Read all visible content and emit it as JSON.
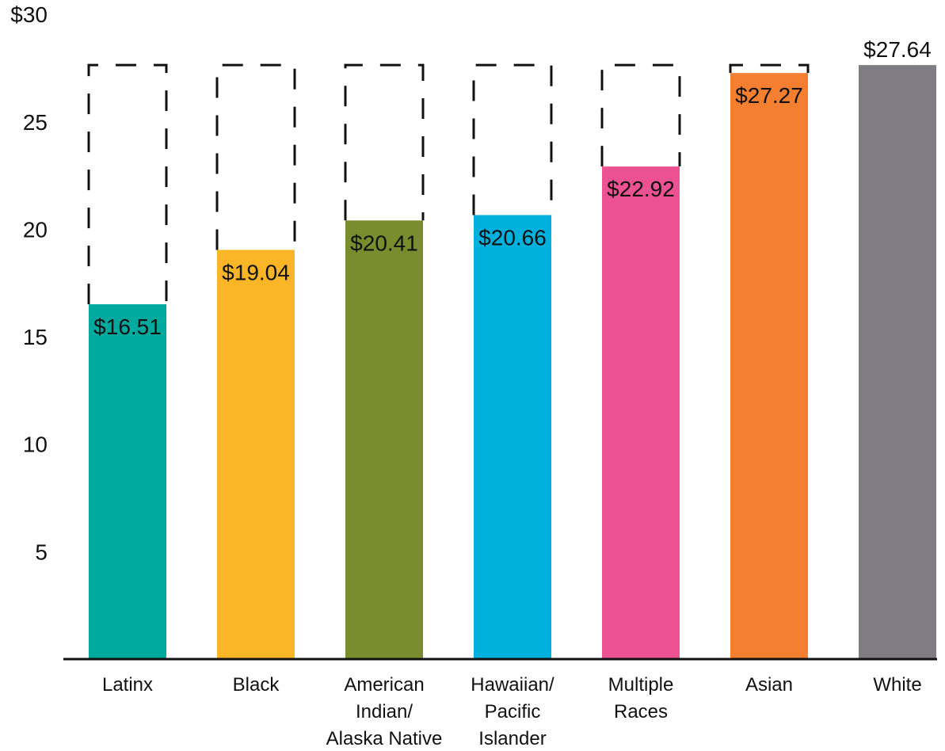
{
  "chart_data": {
    "type": "bar",
    "categories": [
      [
        "Latinx"
      ],
      [
        "Black"
      ],
      [
        "American",
        "Indian/",
        "Alaska Native"
      ],
      [
        "Hawaiian/",
        "Pacific",
        "Islander"
      ],
      [
        "Multiple",
        "Races"
      ],
      [
        "Asian"
      ],
      [
        "White"
      ]
    ],
    "values": [
      16.51,
      19.04,
      20.41,
      20.66,
      22.92,
      27.27,
      27.64
    ],
    "data_labels": [
      "$16.51",
      "$19.04",
      "$20.41",
      "$20.66",
      "$22.92",
      "$27.27",
      "$27.64"
    ],
    "reference_value": 27.64,
    "reference_style": "dashed outline to reference value",
    "colors": [
      "#00a99d",
      "#fbb627",
      "#7a8c2e",
      "#00b0dc",
      "#ec5291",
      "#f47f31",
      "#7f7c83"
    ],
    "ylim": [
      0,
      30
    ],
    "yticks": [
      {
        "value": 5,
        "label": "5"
      },
      {
        "value": 10,
        "label": "10"
      },
      {
        "value": 15,
        "label": "15"
      },
      {
        "value": 20,
        "label": "20"
      },
      {
        "value": 25,
        "label": "25"
      },
      {
        "value": 30,
        "label": "$30"
      }
    ],
    "grid": false,
    "legend": "none"
  }
}
